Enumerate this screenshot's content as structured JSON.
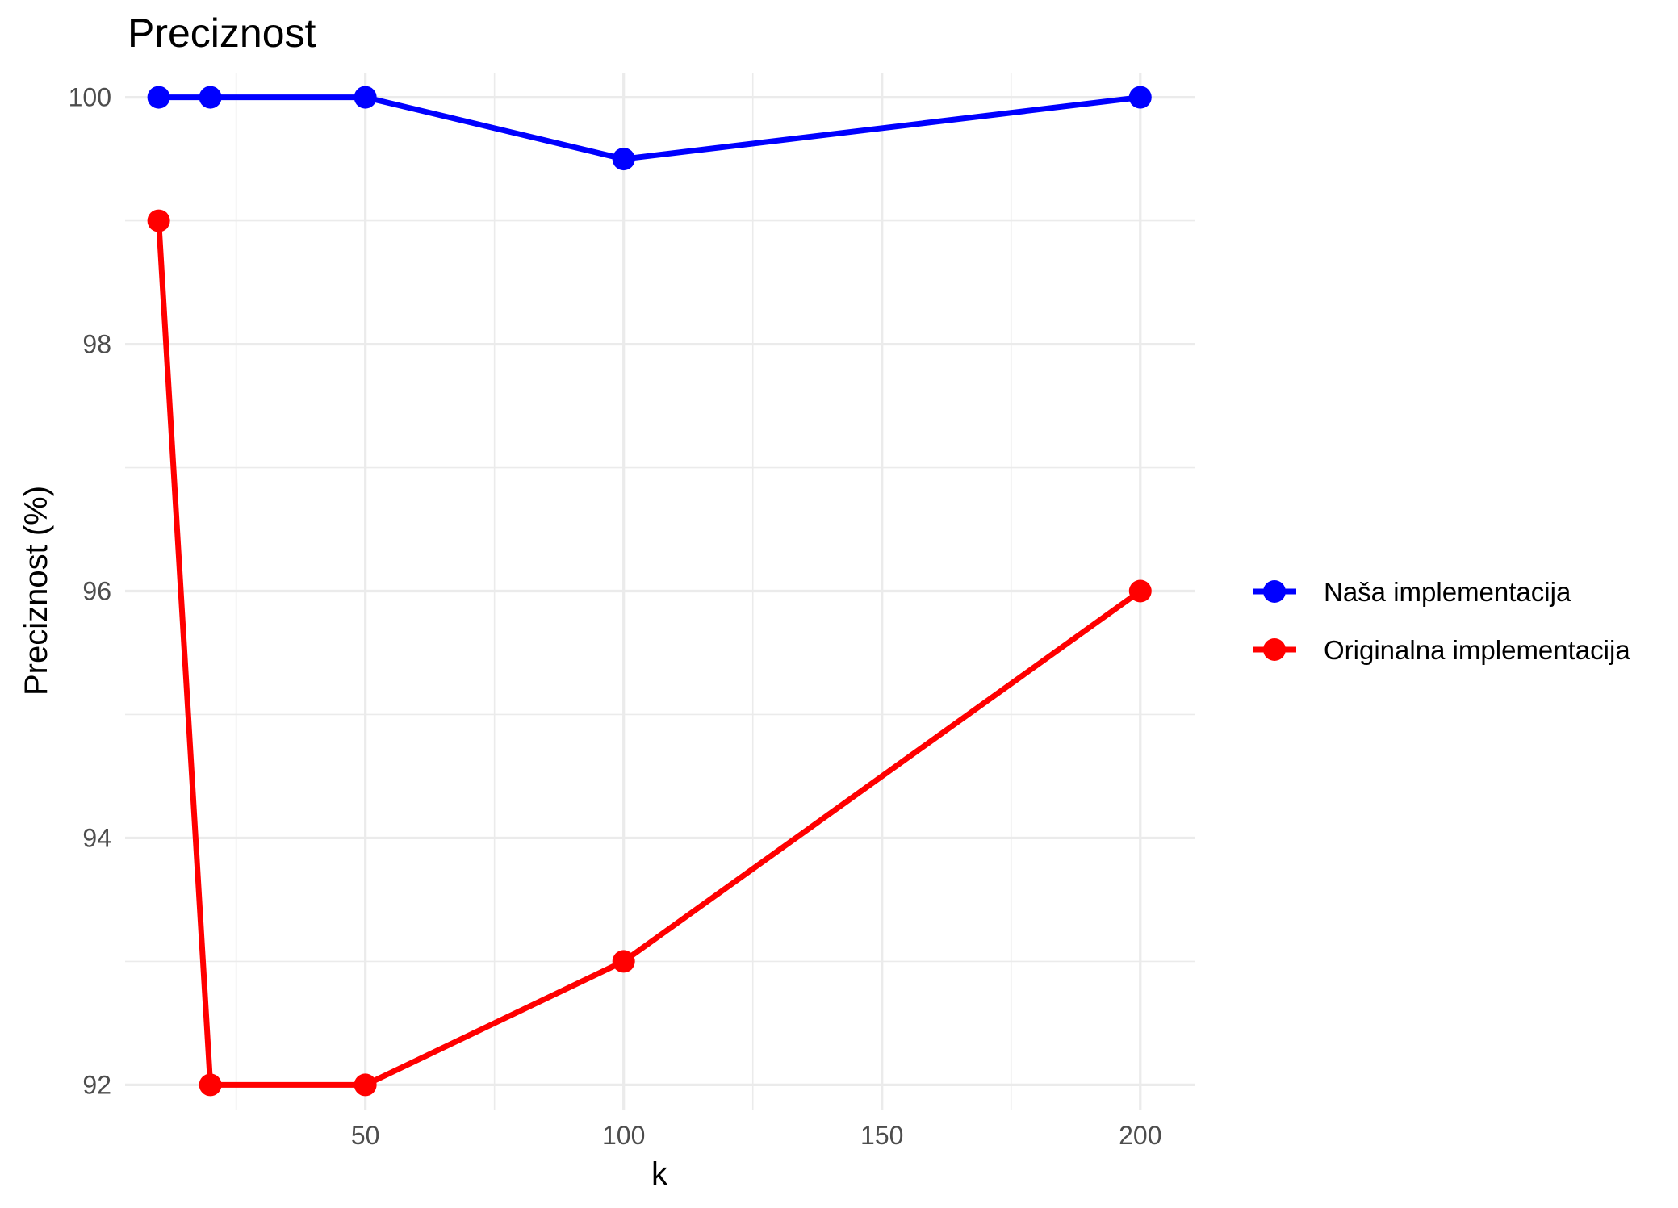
{
  "chart_data": {
    "type": "line",
    "title": "Preciznost",
    "xlabel": "k",
    "ylabel": "Preciznost (%)",
    "xlim": [
      3.5,
      210.5
    ],
    "ylim": [
      91.8,
      100.2
    ],
    "x_ticks": [
      50,
      100,
      150,
      200
    ],
    "y_ticks": [
      92,
      94,
      96,
      98,
      100
    ],
    "grid": true,
    "legend_position": "right",
    "series": [
      {
        "name": "Naša implementacija",
        "color": "#0000ff",
        "x": [
          10,
          20,
          50,
          100,
          200
        ],
        "y": [
          100,
          100,
          100,
          99.5,
          100
        ]
      },
      {
        "name": "Originalna implementacija",
        "color": "#ff0000",
        "x": [
          10,
          20,
          50,
          100,
          200
        ],
        "y": [
          99,
          92,
          92,
          93,
          96
        ]
      }
    ]
  }
}
